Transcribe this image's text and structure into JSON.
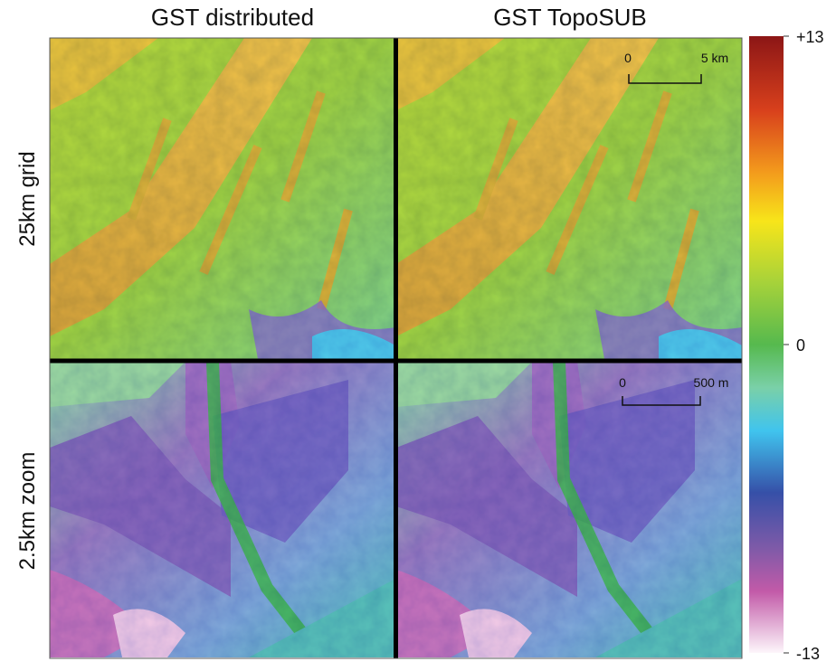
{
  "column_titles": [
    "GST distributed",
    "GST TopoSUB"
  ],
  "row_labels": [
    "25km grid",
    "2.5km zoom"
  ],
  "scale_bars": [
    {
      "start": "0",
      "end": "5 km"
    },
    {
      "start": "0",
      "end": "500 m"
    }
  ],
  "colorbar": {
    "lim": [
      -13,
      13
    ],
    "ticks": [
      {
        "value": 13,
        "label": "+13"
      },
      0,
      {
        "value": -13,
        "label": "-13"
      }
    ]
  }
}
